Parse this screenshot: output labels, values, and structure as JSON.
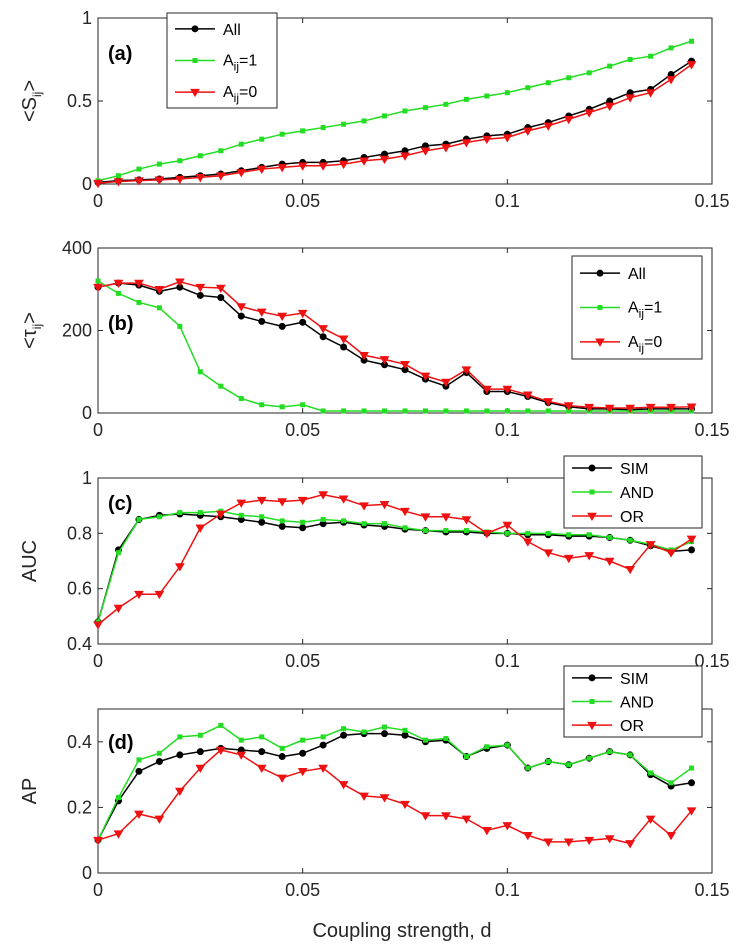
{
  "xlabel": "Coupling strength, d",
  "x_ticks": [
    "0",
    "0.05",
    "0.1",
    "0.15"
  ],
  "colors": {
    "black": "#000000",
    "green": "#22dd22",
    "red": "#ee1111"
  },
  "chart_data": [
    {
      "type": "line",
      "panel_label": "(a)",
      "ylabel": "<S_ij>",
      "ylabel_main": "<S",
      "ylabel_sub": "ij",
      "ylabel_close": ">",
      "xlim": [
        0,
        0.15
      ],
      "ylim": [
        0,
        1
      ],
      "y_ticks": [
        "0",
        "0.5",
        "1"
      ],
      "legend_position": "top-left",
      "x": [
        0,
        0.005,
        0.01,
        0.015,
        0.02,
        0.025,
        0.03,
        0.035,
        0.04,
        0.045,
        0.05,
        0.055,
        0.06,
        0.065,
        0.07,
        0.075,
        0.08,
        0.085,
        0.09,
        0.095,
        0.1,
        0.105,
        0.11,
        0.115,
        0.12,
        0.125,
        0.13,
        0.135,
        0.14,
        0.145
      ],
      "series": [
        {
          "name": "All",
          "color": "black",
          "marker": "circle",
          "values": [
            0.01,
            0.02,
            0.025,
            0.03,
            0.04,
            0.05,
            0.06,
            0.08,
            0.1,
            0.12,
            0.13,
            0.13,
            0.14,
            0.16,
            0.18,
            0.2,
            0.23,
            0.24,
            0.27,
            0.29,
            0.3,
            0.34,
            0.37,
            0.41,
            0.45,
            0.5,
            0.55,
            0.57,
            0.66,
            0.74
          ]
        },
        {
          "name": "A_ij=1",
          "name_main": "A",
          "name_sub": "ij",
          "name_rest": "=1",
          "color": "green",
          "marker": "square",
          "values": [
            0.02,
            0.05,
            0.09,
            0.12,
            0.14,
            0.17,
            0.2,
            0.24,
            0.27,
            0.3,
            0.32,
            0.34,
            0.36,
            0.38,
            0.41,
            0.44,
            0.46,
            0.48,
            0.51,
            0.53,
            0.55,
            0.58,
            0.61,
            0.64,
            0.67,
            0.71,
            0.75,
            0.77,
            0.82,
            0.86
          ]
        },
        {
          "name": "A_ij=0",
          "name_main": "A",
          "name_sub": "ij",
          "name_rest": "=0",
          "color": "red",
          "marker": "triangle-down",
          "values": [
            0.005,
            0.015,
            0.02,
            0.025,
            0.03,
            0.04,
            0.05,
            0.07,
            0.09,
            0.1,
            0.11,
            0.11,
            0.12,
            0.14,
            0.15,
            0.17,
            0.2,
            0.22,
            0.25,
            0.27,
            0.28,
            0.32,
            0.35,
            0.39,
            0.43,
            0.47,
            0.52,
            0.55,
            0.63,
            0.72
          ]
        }
      ]
    },
    {
      "type": "line",
      "panel_label": "(b)",
      "ylabel": "<τ_ij>",
      "ylabel_main": "<τ",
      "ylabel_sub": "ij",
      "ylabel_close": ">",
      "xlim": [
        0,
        0.15
      ],
      "ylim": [
        0,
        400
      ],
      "y_ticks": [
        "0",
        "200",
        "400"
      ],
      "legend_position": "top-right",
      "x": [
        0,
        0.005,
        0.01,
        0.015,
        0.02,
        0.025,
        0.03,
        0.035,
        0.04,
        0.045,
        0.05,
        0.055,
        0.06,
        0.065,
        0.07,
        0.075,
        0.08,
        0.085,
        0.09,
        0.095,
        0.1,
        0.105,
        0.11,
        0.115,
        0.12,
        0.125,
        0.13,
        0.135,
        0.14,
        0.145
      ],
      "series": [
        {
          "name": "All",
          "color": "black",
          "marker": "circle",
          "values": [
            305,
            315,
            310,
            295,
            305,
            285,
            280,
            235,
            222,
            210,
            220,
            185,
            160,
            128,
            117,
            105,
            82,
            65,
            98,
            52,
            52,
            40,
            25,
            15,
            10,
            10,
            8,
            10,
            10,
            10
          ]
        },
        {
          "name": "A_ij=1",
          "name_main": "A",
          "name_sub": "ij",
          "name_rest": "=1",
          "color": "green",
          "marker": "square",
          "values": [
            320,
            290,
            268,
            255,
            210,
            100,
            65,
            35,
            20,
            15,
            20,
            5,
            5,
            5,
            5,
            5,
            5,
            5,
            5,
            5,
            5,
            5,
            5,
            5,
            5,
            5,
            5,
            5,
            5,
            5
          ]
        },
        {
          "name": "A_ij=0",
          "name_main": "A",
          "name_sub": "ij",
          "name_rest": "=0",
          "color": "red",
          "marker": "triangle-down",
          "values": [
            305,
            315,
            315,
            300,
            318,
            305,
            303,
            258,
            245,
            235,
            242,
            205,
            180,
            140,
            130,
            118,
            90,
            75,
            105,
            58,
            58,
            44,
            28,
            18,
            14,
            12,
            12,
            14,
            14,
            15
          ]
        }
      ]
    },
    {
      "type": "line",
      "panel_label": "(c)",
      "ylabel": "AUC",
      "xlim": [
        0,
        0.15
      ],
      "ylim": [
        0.4,
        1
      ],
      "y_ticks": [
        "0.4",
        "0.6",
        "0.8",
        "1"
      ],
      "legend_position": "top-right",
      "x": [
        0,
        0.005,
        0.01,
        0.015,
        0.02,
        0.025,
        0.03,
        0.035,
        0.04,
        0.045,
        0.05,
        0.055,
        0.06,
        0.065,
        0.07,
        0.075,
        0.08,
        0.085,
        0.09,
        0.095,
        0.1,
        0.105,
        0.11,
        0.115,
        0.12,
        0.125,
        0.13,
        0.135,
        0.14,
        0.145
      ],
      "series": [
        {
          "name": "SIM",
          "color": "black",
          "marker": "circle",
          "values": [
            0.48,
            0.74,
            0.85,
            0.865,
            0.87,
            0.865,
            0.86,
            0.85,
            0.84,
            0.825,
            0.82,
            0.835,
            0.84,
            0.83,
            0.825,
            0.815,
            0.81,
            0.805,
            0.805,
            0.8,
            0.8,
            0.795,
            0.795,
            0.79,
            0.79,
            0.785,
            0.775,
            0.755,
            0.735,
            0.74
          ]
        },
        {
          "name": "AND",
          "color": "green",
          "marker": "square",
          "values": [
            0.48,
            0.73,
            0.85,
            0.86,
            0.875,
            0.875,
            0.88,
            0.865,
            0.86,
            0.845,
            0.84,
            0.85,
            0.845,
            0.835,
            0.835,
            0.82,
            0.81,
            0.81,
            0.81,
            0.805,
            0.8,
            0.8,
            0.8,
            0.795,
            0.795,
            0.785,
            0.775,
            0.76,
            0.74,
            0.77
          ]
        },
        {
          "name": "OR",
          "color": "red",
          "marker": "triangle-down",
          "values": [
            0.47,
            0.53,
            0.58,
            0.58,
            0.68,
            0.82,
            0.87,
            0.91,
            0.92,
            0.915,
            0.92,
            0.94,
            0.925,
            0.9,
            0.905,
            0.88,
            0.86,
            0.86,
            0.85,
            0.8,
            0.83,
            0.77,
            0.73,
            0.71,
            0.72,
            0.7,
            0.67,
            0.76,
            0.73,
            0.78
          ]
        }
      ]
    },
    {
      "type": "line",
      "panel_label": "(d)",
      "ylabel": "AP",
      "xlim": [
        0,
        0.15
      ],
      "ylim": [
        0,
        0.5
      ],
      "y_ticks": [
        "0",
        "0.2",
        "0.4"
      ],
      "legend_position": "top-right",
      "x": [
        0,
        0.005,
        0.01,
        0.015,
        0.02,
        0.025,
        0.03,
        0.035,
        0.04,
        0.045,
        0.05,
        0.055,
        0.06,
        0.065,
        0.07,
        0.075,
        0.08,
        0.085,
        0.09,
        0.095,
        0.1,
        0.105,
        0.11,
        0.115,
        0.12,
        0.125,
        0.13,
        0.135,
        0.14,
        0.145
      ],
      "series": [
        {
          "name": "SIM",
          "color": "black",
          "marker": "circle",
          "values": [
            0.1,
            0.22,
            0.31,
            0.34,
            0.36,
            0.37,
            0.38,
            0.375,
            0.37,
            0.355,
            0.365,
            0.39,
            0.42,
            0.425,
            0.425,
            0.42,
            0.4,
            0.405,
            0.355,
            0.38,
            0.39,
            0.32,
            0.34,
            0.33,
            0.35,
            0.37,
            0.36,
            0.3,
            0.265,
            0.275
          ]
        },
        {
          "name": "AND",
          "color": "green",
          "marker": "square",
          "values": [
            0.1,
            0.23,
            0.345,
            0.365,
            0.415,
            0.42,
            0.45,
            0.405,
            0.415,
            0.38,
            0.405,
            0.415,
            0.44,
            0.43,
            0.445,
            0.435,
            0.405,
            0.41,
            0.355,
            0.385,
            0.39,
            0.32,
            0.34,
            0.33,
            0.35,
            0.37,
            0.36,
            0.305,
            0.275,
            0.32
          ]
        },
        {
          "name": "OR",
          "color": "red",
          "marker": "triangle-down",
          "values": [
            0.1,
            0.12,
            0.18,
            0.165,
            0.25,
            0.32,
            0.375,
            0.36,
            0.32,
            0.29,
            0.31,
            0.32,
            0.27,
            0.235,
            0.23,
            0.21,
            0.175,
            0.175,
            0.165,
            0.13,
            0.145,
            0.115,
            0.095,
            0.095,
            0.1,
            0.105,
            0.09,
            0.165,
            0.115,
            0.19
          ]
        }
      ]
    }
  ]
}
